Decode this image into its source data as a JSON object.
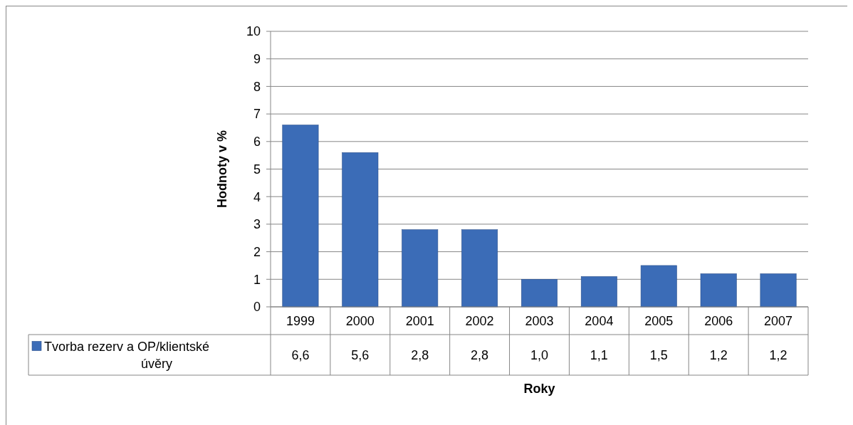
{
  "chart_data": {
    "type": "bar",
    "xlabel": "Roky",
    "ylabel": "Hodnoty v %",
    "categories": [
      "1999",
      "2000",
      "2001",
      "2002",
      "2003",
      "2004",
      "2005",
      "2006",
      "2007"
    ],
    "series": [
      {
        "name": "Tvorba rezerv a OP/klientské úvěry",
        "color": "#3b6cb7",
        "values": [
          6.6,
          5.6,
          2.8,
          2.8,
          1.0,
          1.1,
          1.5,
          1.2,
          1.2
        ],
        "value_labels": [
          "6,6",
          "5,6",
          "2,8",
          "2,8",
          "1,0",
          "1,1",
          "1,5",
          "1,2",
          "1,2"
        ]
      }
    ],
    "ylim": [
      0,
      10
    ],
    "yticks": [
      0,
      1,
      2,
      3,
      4,
      5,
      6,
      7,
      8,
      9,
      10
    ],
    "grid": "y",
    "legend": "bottom"
  }
}
